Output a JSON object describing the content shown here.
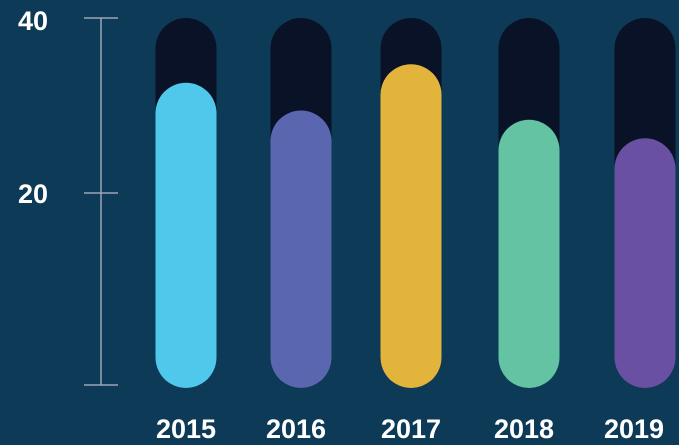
{
  "chart_data": {
    "type": "bar",
    "categories": [
      "2015",
      "2016",
      "2017",
      "2018",
      "2019"
    ],
    "values": [
      33,
      30,
      35,
      29,
      27
    ],
    "ylim": [
      0,
      40
    ],
    "y_ticks": [
      "40",
      "20"
    ],
    "bar_colors": [
      "#4fc8ec",
      "#5a66b0",
      "#e3b43c",
      "#63c3a2",
      "#6a50a2"
    ],
    "track_color": "#091226",
    "axis_color": "#9aa8b5",
    "grid": false
  }
}
